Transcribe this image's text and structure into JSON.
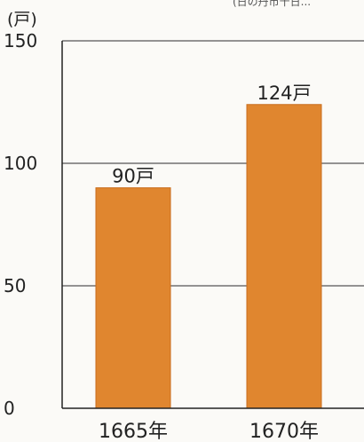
{
  "chart_data": {
    "type": "bar",
    "unit_label": "(戸)",
    "source_note": "(日の丹市十日...",
    "categories": [
      "1665年",
      "1670年"
    ],
    "values": [
      90,
      124
    ],
    "data_labels": [
      "90戸",
      "124戸"
    ],
    "ylim": [
      0,
      150
    ],
    "yticks": [
      0,
      50,
      100,
      150
    ],
    "ytick_labels": [
      "0",
      "50",
      "100",
      "150"
    ],
    "grid": true,
    "colors": {
      "bar": "#e0862f",
      "bar_edge": "#c96c1c",
      "grid": "#555555",
      "axis": "#222222"
    }
  }
}
